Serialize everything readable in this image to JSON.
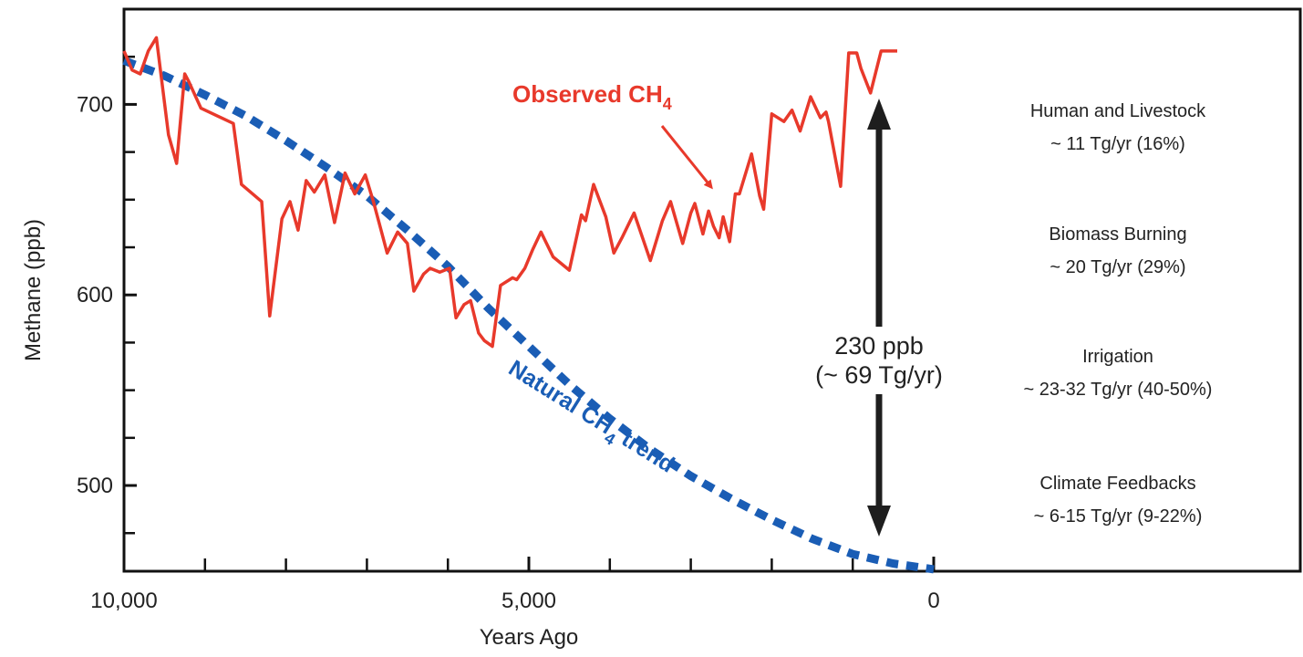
{
  "colors": {
    "observed": "#e8392b",
    "natural": "#1a5db5",
    "axis": "#111111",
    "arrow": "#1e1e1e"
  },
  "chart_data": {
    "type": "line",
    "xlabel": "Years Ago",
    "ylabel": "Methane (ppb)",
    "xlim": [
      10000,
      0
    ],
    "ylim": [
      455,
      750
    ],
    "x_ticks": [
      10000,
      5000,
      0
    ],
    "x_tick_labels": [
      "10,000",
      "5,000",
      "0"
    ],
    "x_minor_ticks": [
      9000,
      8000,
      7000,
      6000,
      4000,
      3000,
      2000,
      1000
    ],
    "y_ticks": [
      500,
      600,
      700
    ],
    "y_tick_labels": [
      "500",
      "600",
      "700"
    ],
    "y_minor_ticks": [
      475,
      525,
      550,
      575,
      625,
      650,
      675,
      725
    ],
    "grid": false,
    "series": [
      {
        "name": "Observed CH4",
        "label_main": "Observed CH",
        "label_sub": "4",
        "style": "solid",
        "x": [
          10000,
          9900,
          9800,
          9700,
          9600,
          9450,
          9350,
          9250,
          9200,
          9050,
          8850,
          8650,
          8550,
          8300,
          8200,
          8050,
          7950,
          7850,
          7750,
          7650,
          7520,
          7400,
          7270,
          7150,
          7020,
          6920,
          6850,
          6750,
          6620,
          6500,
          6420,
          6300,
          6220,
          6100,
          5980,
          5900,
          5800,
          5720,
          5620,
          5550,
          5450,
          5350,
          5200,
          5150,
          5050,
          4950,
          4850,
          4700,
          4500,
          4350,
          4300,
          4200,
          4050,
          3950,
          3850,
          3700,
          3500,
          3350,
          3250,
          3100,
          3000,
          2950,
          2850,
          2780,
          2720,
          2650,
          2600,
          2520,
          2450,
          2400,
          2250,
          2150,
          2100,
          2000,
          1850,
          1750,
          1650,
          1520,
          1400,
          1330,
          1300,
          1150,
          1050,
          950,
          900,
          780,
          650,
          550,
          450
        ],
        "y": [
          728,
          718,
          716,
          728,
          735,
          684,
          669,
          716,
          712,
          698,
          694,
          690,
          658,
          649,
          589,
          640,
          649,
          634,
          660,
          654,
          663,
          638,
          664,
          653,
          663,
          649,
          638,
          622,
          633,
          627,
          602,
          611,
          614,
          612,
          614,
          588,
          595,
          597,
          580,
          576,
          573,
          605,
          609,
          608,
          614,
          624,
          633,
          620,
          613,
          642,
          639,
          658,
          641,
          622,
          630,
          643,
          618,
          639,
          649,
          627,
          643,
          648,
          632,
          644,
          636,
          630,
          641,
          628,
          653,
          653,
          674,
          652,
          645,
          695,
          691,
          697,
          686,
          704,
          693,
          696,
          691,
          657,
          727,
          727,
          719,
          706,
          728,
          728,
          728
        ]
      },
      {
        "name": "Natural CH4 trend",
        "label_main": "Natural CH",
        "label_sub": "4",
        "label_tail": " trend",
        "style": "dashed",
        "x": [
          10000,
          9500,
          9000,
          8500,
          8000,
          7500,
          7000,
          6500,
          6000,
          5500,
          5000,
          4500,
          4000,
          3500,
          3000,
          2500,
          2000,
          1500,
          1000,
          500,
          0
        ],
        "y": [
          723,
          715,
          705,
          694,
          681,
          667,
          652,
          634,
          615,
          593,
          573,
          553,
          535,
          519,
          505,
          493,
          482,
          472,
          464,
          459,
          456
        ]
      }
    ],
    "annotations": {
      "gap_line1": "230 ppb",
      "gap_line2": "(~ 69 Tg/yr)",
      "gap_arrow_x": 750,
      "gap_arrow_top": 703,
      "gap_arrow_bottom": 469
    }
  },
  "sources": [
    {
      "title": "Human and Livestock",
      "value": "~ 11 Tg/yr (16%)"
    },
    {
      "title": "Biomass Burning",
      "value": "~ 20 Tg/yr (29%)"
    },
    {
      "title": "Irrigation",
      "value": "~ 23-32  Tg/yr (40-50%)"
    },
    {
      "title": "Climate Feedbacks",
      "value": "~ 6-15 Tg/yr (9-22%)"
    }
  ]
}
